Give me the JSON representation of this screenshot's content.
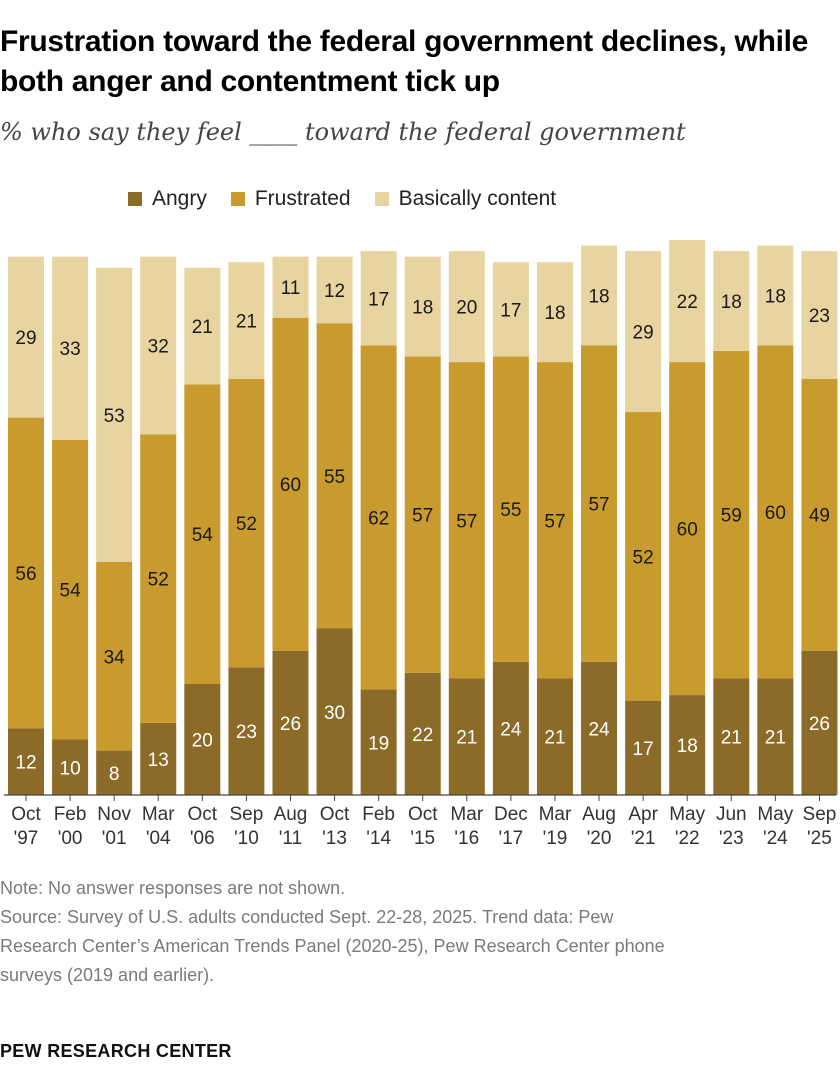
{
  "header": {
    "title": "Frustration toward the federal government declines, while both anger and contentment tick up",
    "subtitle": "% who say they feel ____ toward the federal government"
  },
  "legend": [
    {
      "label": "Angry",
      "color": "#8c6a27"
    },
    {
      "label": "Frustrated",
      "color": "#c99a2e"
    },
    {
      "label": "Basically content",
      "color": "#e8d4a0"
    }
  ],
  "chart_data": {
    "type": "bar",
    "stacked": true,
    "categories": [
      [
        "Oct",
        "'97"
      ],
      [
        "Feb",
        "'00"
      ],
      [
        "Nov",
        "'01"
      ],
      [
        "Mar",
        "'04"
      ],
      [
        "Oct",
        "'06"
      ],
      [
        "Sep",
        "'10"
      ],
      [
        "Aug",
        "'11"
      ],
      [
        "Oct",
        "'13"
      ],
      [
        "Feb",
        "'14"
      ],
      [
        "Oct",
        "'15"
      ],
      [
        "Mar",
        "'16"
      ],
      [
        "Dec",
        "'17"
      ],
      [
        "Mar",
        "'19"
      ],
      [
        "Aug",
        "'20"
      ],
      [
        "Apr",
        "'21"
      ],
      [
        "May",
        "'22"
      ],
      [
        "Jun",
        "'23"
      ],
      [
        "May",
        "'24"
      ],
      [
        "Sep",
        "'25"
      ]
    ],
    "series": [
      {
        "name": "Angry",
        "color": "#8c6a27",
        "values": [
          12,
          10,
          8,
          13,
          20,
          23,
          26,
          30,
          19,
          22,
          21,
          24,
          21,
          24,
          17,
          18,
          21,
          21,
          26
        ]
      },
      {
        "name": "Frustrated",
        "color": "#c99a2e",
        "values": [
          56,
          54,
          34,
          52,
          54,
          52,
          60,
          55,
          62,
          57,
          57,
          55,
          57,
          57,
          52,
          60,
          59,
          60,
          49
        ]
      },
      {
        "name": "Basically content",
        "color": "#e8d4a0",
        "values": [
          29,
          33,
          53,
          32,
          21,
          21,
          11,
          12,
          17,
          18,
          20,
          17,
          18,
          18,
          29,
          22,
          18,
          18,
          23
        ]
      }
    ],
    "ylim": [
      0,
      100
    ],
    "grid": false,
    "legend_position": "top"
  },
  "footer": {
    "note": "Note: No answer responses are not shown.",
    "source_lines": [
      "Source: Survey of U.S. adults conducted Sept. 22-28, 2025. Trend data: Pew",
      "Research Center’s American Trends Panel (2020-25), Pew Research Center phone",
      "surveys (2019 and earlier)."
    ],
    "brand": "PEW RESEARCH CENTER"
  }
}
